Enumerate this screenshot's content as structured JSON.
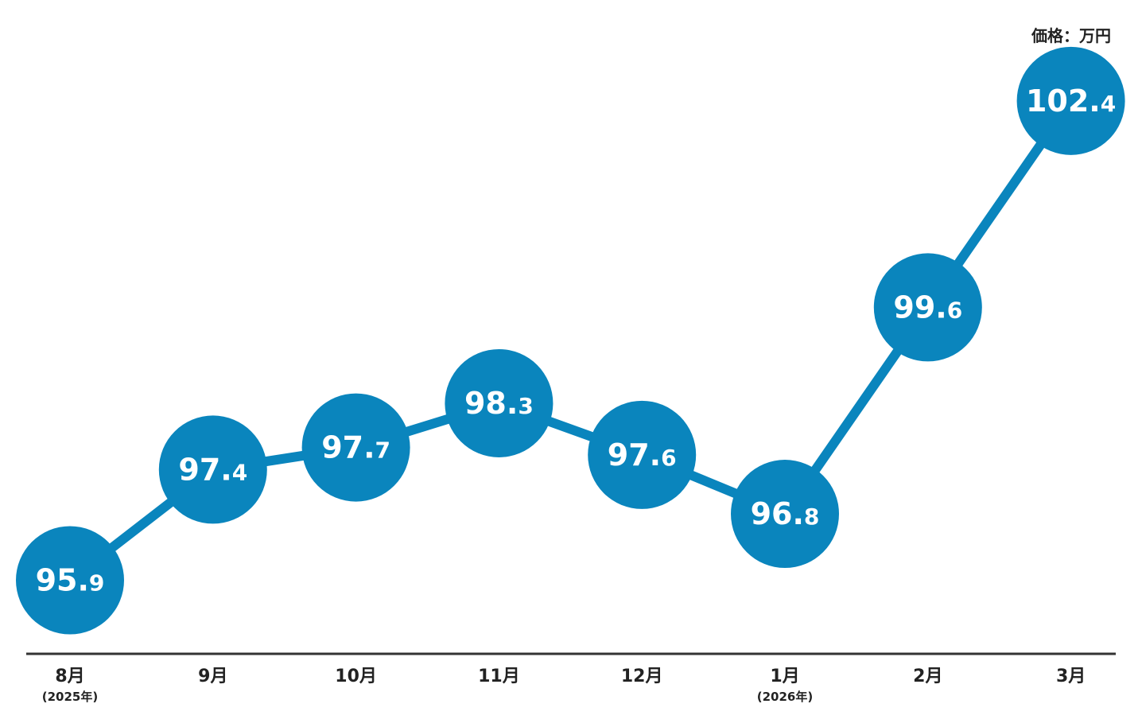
{
  "chart_data": {
    "type": "line",
    "unit_label": "価格：万円",
    "categories": [
      "8月",
      "9月",
      "10月",
      "11月",
      "12月",
      "1月",
      "2月",
      "3月"
    ],
    "category_sublabels": [
      "(2025年)",
      "",
      "",
      "",
      "",
      "(2026年)",
      "",
      ""
    ],
    "values": [
      95.9,
      97.4,
      97.7,
      98.3,
      97.6,
      96.8,
      99.6,
      102.4
    ],
    "value_labels": [
      {
        "int": "95.",
        "dec": "9"
      },
      {
        "int": "97.",
        "dec": "4"
      },
      {
        "int": "97.",
        "dec": "7"
      },
      {
        "int": "98.",
        "dec": "3"
      },
      {
        "int": "97.",
        "dec": "6"
      },
      {
        "int": "96.",
        "dec": "8"
      },
      {
        "int": "99.",
        "dec": "6"
      },
      {
        "int": "102.",
        "dec": "4"
      }
    ],
    "grid": false,
    "legend": "none",
    "colors": {
      "series": "#0a85bd",
      "axis": "#333333",
      "text": "#222222",
      "marker_text": "#ffffff"
    }
  }
}
